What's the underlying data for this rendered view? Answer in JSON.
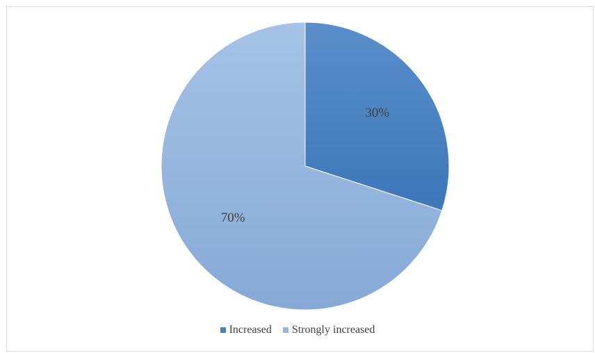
{
  "chart_data": {
    "type": "pie",
    "categories": [
      "Increased",
      "Strongly increased"
    ],
    "values": [
      30,
      70
    ],
    "labels": [
      "30%",
      "70%"
    ],
    "colors": [
      "#4a7fbe",
      "#94b6df"
    ],
    "legend_position": "bottom",
    "start_angle_deg": 0,
    "direction": "clockwise"
  }
}
